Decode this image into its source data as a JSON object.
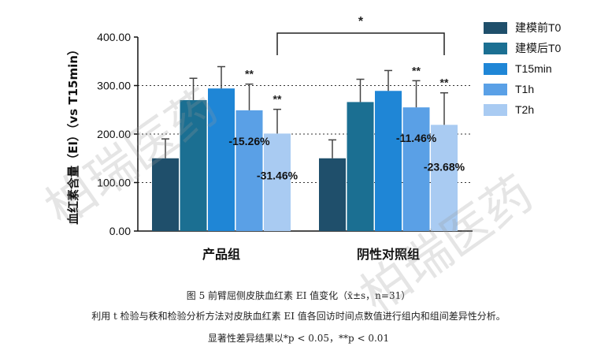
{
  "chart_data": {
    "type": "bar",
    "ylabel": "血红素含量（EI）（vs T15min）",
    "ylim": [
      0,
      400
    ],
    "yticks": [
      "0.00",
      "100.00",
      "200.00",
      "300.00",
      "400.00"
    ],
    "reference_lines_dotted": [
      100,
      200,
      300
    ],
    "categories": [
      "产品组",
      "阴性对照组"
    ],
    "legend_position": "right",
    "series": [
      {
        "name": "建模前T0",
        "color": "#1f4f6b",
        "values": [
          150,
          150
        ],
        "errors": [
          40,
          38
        ]
      },
      {
        "name": "建模后T0",
        "color": "#1b6f92",
        "values": [
          270,
          266
        ],
        "errors": [
          45,
          47
        ]
      },
      {
        "name": "T15min",
        "color": "#1f86d6",
        "values": [
          294,
          289
        ],
        "errors": [
          45,
          42
        ]
      },
      {
        "name": "T1h",
        "color": "#5aa0e6",
        "values": [
          249,
          255
        ],
        "errors": [
          54,
          55
        ]
      },
      {
        "name": "T2h",
        "color": "#a9cbf2",
        "values": [
          201,
          219
        ],
        "errors": [
          50,
          66
        ]
      }
    ],
    "annotations": {
      "star_labels": [
        {
          "group": 0,
          "series": 3,
          "text": "**"
        },
        {
          "group": 0,
          "series": 4,
          "text": "**"
        },
        {
          "group": 1,
          "series": 3,
          "text": "**"
        },
        {
          "group": 1,
          "series": 4,
          "text": "**"
        }
      ],
      "percent_labels": [
        {
          "group": 0,
          "series": 3,
          "text": "-15.26%"
        },
        {
          "group": 0,
          "series": 4,
          "text": "-31.46%"
        },
        {
          "group": 1,
          "series": 3,
          "text": "-11.46%"
        },
        {
          "group": 1,
          "series": 4,
          "text": "-23.68%"
        }
      ],
      "bracket": {
        "from_group": 0,
        "to_group": 1,
        "series": 4,
        "text": "*"
      }
    }
  },
  "caption": {
    "title": "图 5 前臂屈侧皮肤血红素 EI 值变化（x̄±s，n=31）",
    "note1": "利用 t 检验与秩和检验分析方法对皮肤血红素 EI 值各回访时间点数值进行组内和组间差异性分析。",
    "note2": "显著性差异结果以*p < 0.05，**p < 0.01"
  },
  "watermark": "柏瑞医药"
}
